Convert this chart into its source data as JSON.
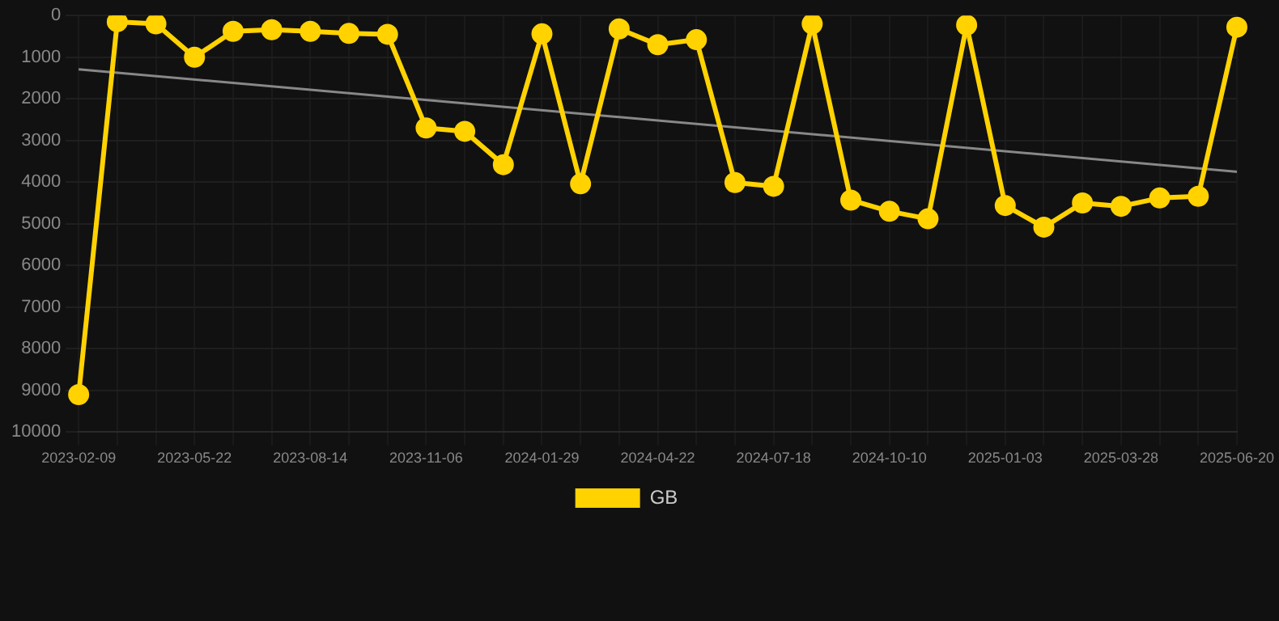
{
  "chart_data": {
    "type": "line",
    "categories": [
      "2023-02-09",
      null,
      null,
      "2023-05-22",
      null,
      null,
      "2023-08-14",
      null,
      null,
      "2023-11-06",
      null,
      null,
      "2024-01-29",
      null,
      null,
      "2024-04-22",
      null,
      null,
      "2024-07-18",
      null,
      null,
      "2024-10-10",
      null,
      null,
      "2025-01-03",
      null,
      null,
      "2025-03-28",
      null,
      null,
      "2025-06-20"
    ],
    "series": [
      {
        "name": "GB",
        "color": "#ffd200",
        "marker": "circle",
        "values": [
          9100,
          150,
          200,
          1000,
          380,
          340,
          380,
          430,
          450,
          2700,
          2780,
          3580,
          440,
          4040,
          320,
          700,
          580,
          4010,
          4100,
          200,
          4430,
          4700,
          4880,
          230,
          4560,
          5080,
          4500,
          4580,
          4380,
          4340,
          280
        ]
      },
      {
        "type": "line",
        "color": "#888888",
        "marker": "none",
        "values": [
          1290,
          null,
          null,
          null,
          null,
          null,
          null,
          null,
          null,
          null,
          null,
          null,
          null,
          null,
          null,
          null,
          null,
          null,
          null,
          null,
          null,
          null,
          null,
          null,
          null,
          null,
          null,
          null,
          null,
          null,
          3750
        ]
      }
    ],
    "ylim": [
      10000,
      0
    ],
    "yticks": [
      0,
      1000,
      2000,
      3000,
      4000,
      5000,
      6000,
      7000,
      8000,
      9000,
      10000
    ],
    "grid": true,
    "legend": "bottom"
  }
}
